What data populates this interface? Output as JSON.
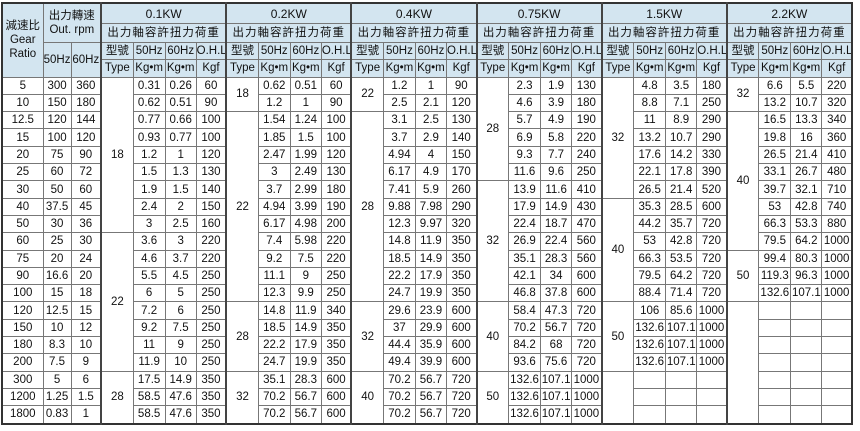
{
  "left_header": {
    "ratio_cn": "減速比",
    "ratio_en1": "Gear",
    "ratio_en2": "Ratio",
    "rpm_cn": "出力轉速",
    "rpm_en": "Out. rpm",
    "hz50": "50Hz",
    "hz60": "60Hz"
  },
  "col_header": {
    "type_cn": "型號",
    "type_en": "Type",
    "hz50": "50Hz",
    "hz60": "60Hz",
    "ohl": "O.H.L.",
    "unit_torque": "Kg•m",
    "unit_ohl": "Kgf"
  },
  "header_color": "#d3e5f0",
  "ratios": [
    [
      "5",
      "300",
      "360"
    ],
    [
      "10",
      "150",
      "180"
    ],
    [
      "12.5",
      "120",
      "144"
    ],
    [
      "15",
      "100",
      "120"
    ],
    [
      "20",
      "75",
      "90"
    ],
    [
      "25",
      "60",
      "72"
    ],
    [
      "30",
      "50",
      "60"
    ],
    [
      "40",
      "37.5",
      "45"
    ],
    [
      "50",
      "30",
      "36"
    ],
    [
      "60",
      "25",
      "30"
    ],
    [
      "75",
      "20",
      "24"
    ],
    [
      "90",
      "16.6",
      "20"
    ],
    [
      "100",
      "15",
      "18"
    ],
    [
      "120",
      "12.5",
      "15"
    ],
    [
      "150",
      "10",
      "12"
    ],
    [
      "180",
      "8.3",
      "10"
    ],
    [
      "200",
      "7.5",
      "9"
    ],
    [
      "300",
      "5",
      "6"
    ],
    [
      "1200",
      "1.25",
      "1.5"
    ],
    [
      "1800",
      "0.83",
      "1"
    ]
  ],
  "groups": [
    {
      "power": "0.1KW",
      "subtitle": "出力軸容許扭力荷重",
      "types": [
        {
          "value": "18",
          "span": 9
        },
        {
          "value": "22",
          "span": 8
        },
        {
          "value": "28",
          "span": 3
        }
      ],
      "rows": [
        [
          "0.31",
          "0.26",
          "60"
        ],
        [
          "0.62",
          "0.51",
          "90"
        ],
        [
          "0.77",
          "0.66",
          "100"
        ],
        [
          "0.93",
          "0.77",
          "100"
        ],
        [
          "1.2",
          "1",
          "120"
        ],
        [
          "1.5",
          "1.3",
          "130"
        ],
        [
          "1.9",
          "1.5",
          "140"
        ],
        [
          "2.4",
          "2",
          "150"
        ],
        [
          "3",
          "2.5",
          "160"
        ],
        [
          "3.6",
          "3",
          "220"
        ],
        [
          "4.6",
          "3.7",
          "220"
        ],
        [
          "5.5",
          "4.5",
          "250"
        ],
        [
          "6",
          "5",
          "250"
        ],
        [
          "7.2",
          "6",
          "250"
        ],
        [
          "9.2",
          "7.5",
          "250"
        ],
        [
          "11",
          "9",
          "250"
        ],
        [
          "11.9",
          "10",
          "250"
        ],
        [
          "17.5",
          "14.9",
          "350"
        ],
        [
          "58.5",
          "47.6",
          "350"
        ],
        [
          "58.5",
          "47.6",
          "350"
        ]
      ]
    },
    {
      "power": "0.2KW",
      "subtitle": "出力軸容許扭力荷重",
      "types": [
        {
          "value": "18",
          "span": 2
        },
        {
          "value": "22",
          "span": 11
        },
        {
          "value": "28",
          "span": 4
        },
        {
          "value": "32",
          "span": 3
        }
      ],
      "rows": [
        [
          "0.62",
          "0.51",
          "60"
        ],
        [
          "1.2",
          "1",
          "90"
        ],
        [
          "1.54",
          "1.24",
          "100"
        ],
        [
          "1.85",
          "1.5",
          "100"
        ],
        [
          "2.47",
          "1.99",
          "120"
        ],
        [
          "3",
          "2.49",
          "130"
        ],
        [
          "3.7",
          "2.99",
          "180"
        ],
        [
          "4.94",
          "3.99",
          "190"
        ],
        [
          "6.17",
          "4.98",
          "200"
        ],
        [
          "7.4",
          "5.98",
          "220"
        ],
        [
          "9.2",
          "7.5",
          "220"
        ],
        [
          "11.1",
          "9",
          "250"
        ],
        [
          "12.3",
          "9.9",
          "250"
        ],
        [
          "14.8",
          "11.9",
          "340"
        ],
        [
          "18.5",
          "14.9",
          "350"
        ],
        [
          "22.2",
          "17.9",
          "350"
        ],
        [
          "24.7",
          "19.9",
          "350"
        ],
        [
          "35.1",
          "28.3",
          "600"
        ],
        [
          "70.2",
          "56.7",
          "600"
        ],
        [
          "70.2",
          "56.7",
          "600"
        ]
      ]
    },
    {
      "power": "0.4KW",
      "subtitle": "出力軸容許扭力荷重",
      "types": [
        {
          "value": "22",
          "span": 2
        },
        {
          "value": "28",
          "span": 11
        },
        {
          "value": "32",
          "span": 4
        },
        {
          "value": "40",
          "span": 3
        }
      ],
      "rows": [
        [
          "1.2",
          "1",
          "90"
        ],
        [
          "2.5",
          "2.1",
          "120"
        ],
        [
          "3.1",
          "2.5",
          "130"
        ],
        [
          "3.7",
          "2.9",
          "140"
        ],
        [
          "4.94",
          "4",
          "150"
        ],
        [
          "6.17",
          "4.9",
          "170"
        ],
        [
          "7.41",
          "5.9",
          "260"
        ],
        [
          "9.88",
          "7.98",
          "290"
        ],
        [
          "12.3",
          "9.97",
          "320"
        ],
        [
          "14.8",
          "11.9",
          "350"
        ],
        [
          "18.5",
          "14.9",
          "350"
        ],
        [
          "22.2",
          "17.9",
          "350"
        ],
        [
          "24.7",
          "19.9",
          "350"
        ],
        [
          "29.6",
          "23.9",
          "600"
        ],
        [
          "37",
          "29.9",
          "600"
        ],
        [
          "44.4",
          "35.9",
          "600"
        ],
        [
          "49.4",
          "39.9",
          "600"
        ],
        [
          "70.2",
          "56.7",
          "720"
        ],
        [
          "70.2",
          "56.7",
          "720"
        ],
        [
          "70.2",
          "56.7",
          "720"
        ]
      ]
    },
    {
      "power": "0.75KW",
      "subtitle": "出力軸容許扭力荷重",
      "types": [
        {
          "value": "28",
          "span": 6
        },
        {
          "value": "32",
          "span": 7
        },
        {
          "value": "40",
          "span": 4
        },
        {
          "value": "50",
          "span": 3
        }
      ],
      "rows": [
        [
          "2.3",
          "1.9",
          "130"
        ],
        [
          "4.6",
          "3.9",
          "180"
        ],
        [
          "5.7",
          "4.9",
          "190"
        ],
        [
          "6.9",
          "5.8",
          "220"
        ],
        [
          "9.3",
          "7.7",
          "240"
        ],
        [
          "11.6",
          "9.6",
          "250"
        ],
        [
          "13.9",
          "11.6",
          "410"
        ],
        [
          "17.9",
          "14.9",
          "430"
        ],
        [
          "22.4",
          "18.7",
          "470"
        ],
        [
          "26.9",
          "22.4",
          "560"
        ],
        [
          "35.1",
          "28.3",
          "560"
        ],
        [
          "42.1",
          "34",
          "600"
        ],
        [
          "46.8",
          "37.8",
          "600"
        ],
        [
          "58.4",
          "47.3",
          "720"
        ],
        [
          "70.2",
          "56.7",
          "720"
        ],
        [
          "84.2",
          "68",
          "720"
        ],
        [
          "93.6",
          "75.6",
          "720"
        ],
        [
          "132.6",
          "107.1",
          "1000"
        ],
        [
          "132.6",
          "107.1",
          "1000"
        ],
        [
          "132.6",
          "107.1",
          "1000"
        ]
      ]
    },
    {
      "power": "1.5KW",
      "subtitle": "出力軸容許扭力荷重",
      "types": [
        {
          "value": "32",
          "span": 7
        },
        {
          "value": "40",
          "span": 6
        },
        {
          "value": "50",
          "span": 4
        },
        {
          "value": "",
          "span": 3
        }
      ],
      "rows": [
        [
          "4.8",
          "3.5",
          "180"
        ],
        [
          "8.8",
          "7.1",
          "250"
        ],
        [
          "11",
          "8.9",
          "290"
        ],
        [
          "13.2",
          "10.7",
          "290"
        ],
        [
          "17.6",
          "14.2",
          "330"
        ],
        [
          "22.1",
          "17.8",
          "390"
        ],
        [
          "26.5",
          "21.4",
          "520"
        ],
        [
          "35.3",
          "28.5",
          "600"
        ],
        [
          "44.2",
          "35.7",
          "720"
        ],
        [
          "53",
          "42.8",
          "720"
        ],
        [
          "66.3",
          "53.5",
          "720"
        ],
        [
          "79.5",
          "64.2",
          "720"
        ],
        [
          "88.4",
          "71.4",
          "720"
        ],
        [
          "106",
          "85.6",
          "1000"
        ],
        [
          "132.6",
          "107.1",
          "1000"
        ],
        [
          "132.6",
          "107.1",
          "1000"
        ],
        [
          "132.6",
          "107.1",
          "1000"
        ]
      ]
    },
    {
      "power": "2.2KW",
      "subtitle": "出力軸容許扭力荷重",
      "types": [
        {
          "value": "32",
          "span": 2
        },
        {
          "value": "40",
          "span": 8
        },
        {
          "value": "50",
          "span": 3
        },
        {
          "value": "",
          "span": 7,
          "open_top": true
        }
      ],
      "rows": [
        [
          "6.6",
          "5.5",
          "220"
        ],
        [
          "13.2",
          "10.7",
          "320"
        ],
        [
          "16.5",
          "13.3",
          "340"
        ],
        [
          "19.8",
          "16",
          "360"
        ],
        [
          "26.5",
          "21.4",
          "410"
        ],
        [
          "33.1",
          "26.7",
          "480"
        ],
        [
          "39.7",
          "32.1",
          "710"
        ],
        [
          "53",
          "42.8",
          "740"
        ],
        [
          "66.3",
          "53.3",
          "880"
        ],
        [
          "79.5",
          "64.2",
          "1000"
        ],
        [
          "99.4",
          "80.3",
          "1000"
        ],
        [
          "119.3",
          "96.3",
          "1000"
        ],
        [
          "132.6",
          "107.1",
          "1000"
        ]
      ]
    }
  ]
}
